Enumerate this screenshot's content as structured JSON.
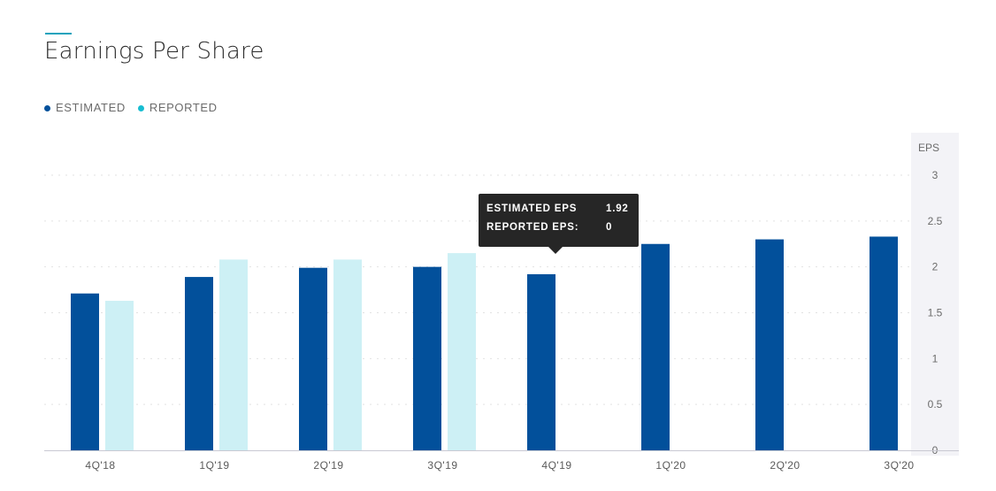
{
  "header": {
    "title": "Earnings Per Share"
  },
  "legend": {
    "items": [
      {
        "label": "ESTIMATED",
        "color": "#02509b"
      },
      {
        "label": "REPORTED",
        "color": "#17bdd1"
      }
    ]
  },
  "tooltip": {
    "estimated_label": "ESTIMATED EPS",
    "estimated_value": "1.92",
    "reported_label": "REPORTED EPS:",
    "reported_value": "0"
  },
  "chart_data": {
    "type": "bar",
    "title": "Earnings Per Share",
    "ylabel": "EPS",
    "ylim": [
      0,
      3
    ],
    "yticks": [
      0,
      0.5,
      1,
      1.5,
      2,
      2.5,
      3
    ],
    "ytick_labels": [
      "0",
      "0.5",
      "1",
      "1.5",
      "2",
      "2.5",
      "3"
    ],
    "grid": true,
    "legend_position": "top-left",
    "categories": [
      "4Q'18",
      "1Q'19",
      "2Q'19",
      "3Q'19",
      "4Q'19",
      "1Q'20",
      "2Q'20",
      "3Q'20"
    ],
    "series": [
      {
        "name": "ESTIMATED",
        "color": "#02509b",
        "values": [
          1.71,
          1.89,
          1.99,
          2.0,
          1.92,
          2.25,
          2.3,
          2.33
        ]
      },
      {
        "name": "REPORTED",
        "color": "#cdf0f5",
        "values": [
          1.63,
          2.08,
          2.08,
          2.15,
          null,
          null,
          null,
          null
        ]
      }
    ]
  }
}
